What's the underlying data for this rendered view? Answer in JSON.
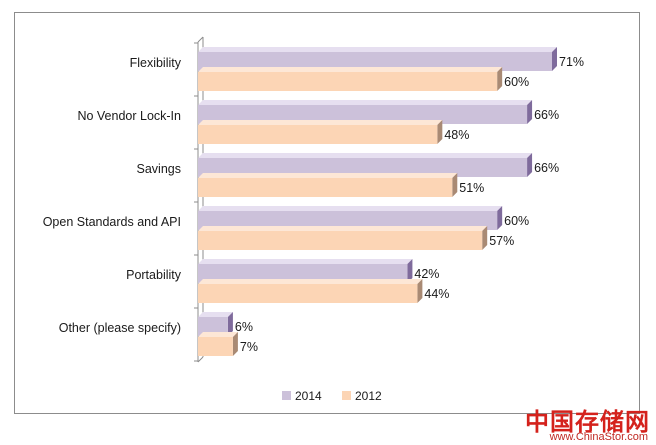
{
  "chart_data": {
    "type": "bar",
    "orientation": "horizontal",
    "style": "3d",
    "categories": [
      "Flexibility",
      "No Vendor Lock-In",
      "Savings",
      "Open Standards and API",
      "Portability",
      "Other (please specify)"
    ],
    "series": [
      {
        "name": "2014",
        "values": [
          71,
          66,
          66,
          60,
          42,
          6
        ],
        "labels": [
          "71%",
          "66%",
          "66%",
          "60%",
          "42%",
          "6%"
        ],
        "color": "#ccc1da"
      },
      {
        "name": "2012",
        "values": [
          60,
          48,
          51,
          57,
          44,
          7
        ],
        "labels": [
          "60%",
          "48%",
          "51%",
          "57%",
          "44%",
          "7%"
        ],
        "color": "#fcd5b5"
      }
    ],
    "xlim": [
      0,
      80
    ],
    "grid": false,
    "legend_position": "bottom"
  },
  "colors": {
    "series_2014_top": "#e6dff0",
    "series_2014_side": "#7f6b9c",
    "series_2012_top": "#fde7d6",
    "series_2012_side": "#a98a74",
    "frame": "#8c8c8c"
  },
  "watermark": {
    "chinese": "中国存储网",
    "url": "www.ChinaStor.com"
  }
}
